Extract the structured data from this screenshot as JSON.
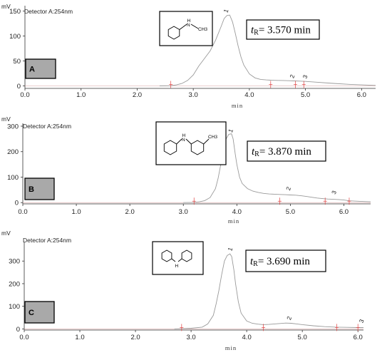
{
  "chart_data": [
    {
      "type": "line",
      "panel_label": "A",
      "unit_label": "mV",
      "detector_label": "Detector A:254nm",
      "xlabel": "min",
      "xlim": [
        0,
        6.25
      ],
      "ylim": [
        -5,
        155
      ],
      "x_ticks": [
        "0.0",
        "1.0",
        "2.0",
        "3.0",
        "4.0",
        "5.0",
        "6.0"
      ],
      "y_ticks": [
        "0",
        "50",
        "100",
        "150"
      ],
      "structure_label": "CH3",
      "retention_time": {
        "prefix": "t",
        "subscript": "R",
        "text": "= 3.570 min"
      },
      "peaks": [
        {
          "label": "1",
          "x": 3.57,
          "y": 140
        },
        {
          "label": "2",
          "x": 4.75,
          "y": 9
        },
        {
          "label": "3",
          "x": 4.98,
          "y": 8
        }
      ],
      "integration_marks": [
        2.6,
        4.38,
        4.82,
        4.97
      ],
      "series": [
        {
          "x": [
            2.4,
            2.6,
            2.7,
            2.8,
            2.9,
            3.0,
            3.1,
            3.2,
            3.3,
            3.4,
            3.5,
            3.55,
            3.6,
            3.65,
            3.7,
            3.75,
            3.8,
            3.85,
            3.9,
            4.0,
            4.1,
            4.2,
            4.3,
            4.38,
            4.5,
            4.6,
            4.7,
            4.8,
            4.9,
            5.0,
            5.2,
            5.5,
            5.8,
            6.25
          ],
          "y": [
            0,
            0.5,
            2,
            5,
            11,
            22,
            40,
            55,
            70,
            92,
            120,
            135,
            141,
            142,
            128,
            105,
            80,
            58,
            42,
            24,
            16,
            13,
            12,
            11.5,
            11,
            10.8,
            10.5,
            10,
            9.5,
            9,
            7.5,
            5,
            3,
            1
          ]
        }
      ]
    },
    {
      "type": "line",
      "panel_label": "B",
      "unit_label": "mV",
      "detector_label": "Detector A:254nm",
      "xlabel": "min",
      "xlim": [
        0,
        6.5
      ],
      "ylim": [
        -5,
        300
      ],
      "x_ticks": [
        "0.0",
        "1.0",
        "2.0",
        "3.0",
        "4.0",
        "5.0",
        "6.0"
      ],
      "y_ticks": [
        "0",
        "100",
        "200",
        "300"
      ],
      "structure_label": "CH3",
      "retention_time": {
        "prefix": "t",
        "subscript": "R",
        "text": "= 3.870 min"
      },
      "peaks": [
        {
          "label": "1",
          "x": 3.87,
          "y": 262
        },
        {
          "label": "2",
          "x": 4.95,
          "y": 35
        },
        {
          "label": "3",
          "x": 5.8,
          "y": 20
        }
      ],
      "integration_marks": [
        3.2,
        4.8,
        5.65,
        6.1
      ],
      "series": [
        {
          "x": [
            3.0,
            3.2,
            3.3,
            3.4,
            3.5,
            3.6,
            3.65,
            3.7,
            3.75,
            3.8,
            3.85,
            3.9,
            3.93,
            3.97,
            4.0,
            4.05,
            4.1,
            4.2,
            4.3,
            4.4,
            4.5,
            4.6,
            4.7,
            4.8,
            4.9,
            5.0,
            5.1,
            5.2,
            5.3,
            5.5,
            5.65,
            5.7,
            5.8,
            5.9,
            6.0,
            6.1,
            6.3,
            6.5
          ],
          "y": [
            0,
            1,
            3,
            8,
            20,
            55,
            95,
            150,
            210,
            250,
            268,
            270,
            250,
            190,
            150,
            100,
            75,
            55,
            45,
            40,
            36,
            34,
            33,
            32,
            31,
            30,
            29,
            27,
            24,
            18,
            15,
            14,
            13,
            12,
            10,
            7,
            5,
            3
          ]
        }
      ]
    },
    {
      "type": "line",
      "panel_label": "C",
      "unit_label": "mV",
      "detector_label": "Detector A:254nm",
      "xlabel": "min",
      "xlim": [
        0,
        6.1
      ],
      "ylim": [
        -5,
        370
      ],
      "x_ticks": [
        "0.0",
        "1.0",
        "2.0",
        "3.0",
        "4.0",
        "5.0",
        "6.0"
      ],
      "y_ticks": [
        "0",
        "100",
        "200",
        "300"
      ],
      "structure_label": "H",
      "retention_time": {
        "prefix": "t",
        "subscript": "R",
        "text": "= 3.690 min"
      },
      "peaks": [
        {
          "label": "1",
          "x": 3.69,
          "y": 330
        },
        {
          "label": "2",
          "x": 4.75,
          "y": 25
        },
        {
          "label": "3",
          "x": 6.05,
          "y": 12
        }
      ],
      "integration_marks": [
        2.83,
        4.3,
        5.62,
        6.0
      ],
      "series": [
        {
          "x": [
            2.7,
            2.83,
            3.0,
            3.2,
            3.3,
            3.4,
            3.45,
            3.5,
            3.55,
            3.6,
            3.65,
            3.7,
            3.73,
            3.77,
            3.8,
            3.85,
            3.9,
            4.0,
            4.1,
            4.2,
            4.3,
            4.4,
            4.5,
            4.6,
            4.7,
            4.8,
            4.9,
            5.0,
            5.2,
            5.4,
            5.6,
            5.8,
            6.0,
            6.1
          ],
          "y": [
            0,
            1,
            3,
            8,
            22,
            60,
            110,
            170,
            240,
            300,
            325,
            332,
            320,
            260,
            200,
            120,
            70,
            35,
            25,
            21,
            19,
            20,
            22,
            24,
            26,
            25,
            22,
            19,
            14,
            10,
            8,
            7,
            6,
            6
          ]
        }
      ]
    }
  ]
}
